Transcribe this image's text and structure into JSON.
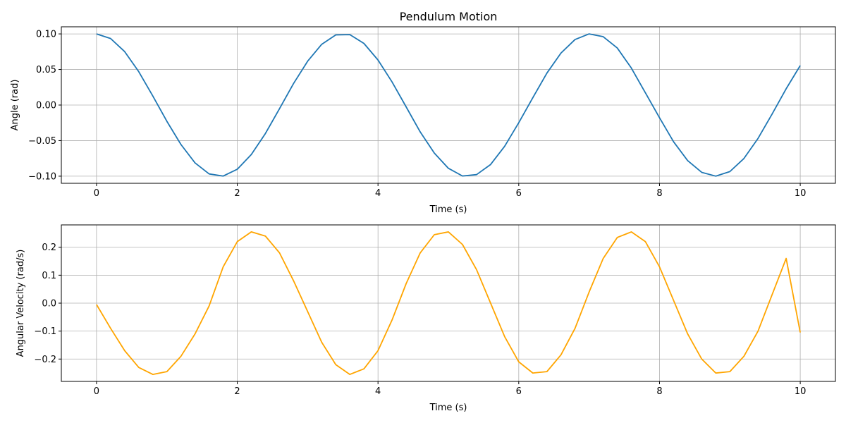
{
  "chart_data": [
    {
      "type": "line",
      "title": "Pendulum Motion",
      "xlabel": "Time (s)",
      "ylabel": "Angle (rad)",
      "xlim": [
        -0.5,
        10.5
      ],
      "ylim": [
        -0.11,
        0.11
      ],
      "xticks": [
        0,
        2,
        4,
        6,
        8,
        10
      ],
      "yticks": [
        -0.1,
        -0.05,
        0.0,
        0.05,
        0.1
      ],
      "ytick_labels": [
        "−0.10",
        "−0.05",
        "0.00",
        "0.05",
        "0.10"
      ],
      "xtick_labels": [
        "0",
        "2",
        "4",
        "6",
        "8",
        "10"
      ],
      "grid": true,
      "series": [
        {
          "color": "#1f77b4",
          "x": [
            0,
            0.2,
            0.4,
            0.6,
            0.8,
            1.0,
            1.2,
            1.4,
            1.6,
            1.8,
            2.0,
            2.2,
            2.4,
            2.6,
            2.8,
            3.0,
            3.2,
            3.4,
            3.6,
            3.8,
            4.0,
            4.2,
            4.4,
            4.6,
            4.8,
            5.0,
            5.2,
            5.4,
            5.6,
            5.8,
            6.0,
            6.2,
            6.4,
            6.6,
            6.8,
            7.0,
            7.2,
            7.4,
            7.6,
            7.8,
            8.0,
            8.2,
            8.4,
            8.6,
            8.8,
            9.0,
            9.2,
            9.4,
            9.6,
            9.8,
            10.0
          ],
          "y": [
            0.1,
            0.0935,
            0.0751,
            0.0469,
            0.0127,
            -0.0229,
            -0.0555,
            -0.0813,
            -0.0968,
            -0.0998,
            -0.0903,
            -0.0695,
            -0.04,
            -0.0051,
            0.0303,
            0.0616,
            0.0854,
            0.0986,
            0.099,
            0.0866,
            0.0633,
            0.0324,
            -0.0026,
            -0.0378,
            -0.0675,
            -0.0889,
            -0.0997,
            -0.0978,
            -0.0836,
            -0.0579,
            -0.0248,
            0.0103,
            0.0449,
            0.0731,
            0.0921,
            0.1,
            0.0961,
            0.0802,
            0.052,
            0.0171,
            -0.0178,
            -0.0516,
            -0.0781,
            -0.0946,
            -0.0999,
            -0.0935,
            -0.0751,
            -0.0469,
            -0.0127,
            0.0229,
            0.0555
          ]
        }
      ]
    },
    {
      "type": "line",
      "title": "",
      "xlabel": "Time (s)",
      "ylabel": "Angular Velocity (rad/s)",
      "xlim": [
        -0.5,
        10.5
      ],
      "ylim": [
        -0.28,
        0.28
      ],
      "xticks": [
        0,
        2,
        4,
        6,
        8,
        10
      ],
      "yticks": [
        -0.2,
        -0.1,
        0.0,
        0.1,
        0.2
      ],
      "ytick_labels": [
        "−0.2",
        "−0.1",
        "0.0",
        "0.1",
        "0.2"
      ],
      "xtick_labels": [
        "0",
        "2",
        "4",
        "6",
        "8",
        "10"
      ],
      "grid": true,
      "series": [
        {
          "color": "#ffa500",
          "x": [
            0,
            0.2,
            0.4,
            0.6,
            0.8,
            1.0,
            1.2,
            1.4,
            1.6,
            1.8,
            2.0,
            2.2,
            2.4,
            2.6,
            2.8,
            3.0,
            3.2,
            3.4,
            3.6,
            3.8,
            4.0,
            4.2,
            4.4,
            4.6,
            4.8,
            5.0,
            5.2,
            5.4,
            5.6,
            5.8,
            6.0,
            6.2,
            6.4,
            6.6,
            6.8,
            7.0,
            7.2,
            7.4,
            7.6,
            7.8,
            8.0,
            8.2,
            8.4,
            8.6,
            8.8,
            9.0,
            9.2,
            9.4,
            9.6,
            9.8,
            10.0
          ],
          "y": [
            -0.005,
            -0.09,
            -0.17,
            -0.23,
            -0.255,
            -0.245,
            -0.19,
            -0.11,
            -0.01,
            0.13,
            0.22,
            0.255,
            0.24,
            0.18,
            0.08,
            -0.03,
            -0.14,
            -0.22,
            -0.255,
            -0.235,
            -0.17,
            -0.06,
            0.07,
            0.18,
            0.245,
            0.255,
            0.21,
            0.12,
            0.0,
            -0.12,
            -0.21,
            -0.25,
            -0.245,
            -0.185,
            -0.09,
            0.04,
            0.16,
            0.235,
            0.255,
            0.22,
            0.13,
            0.01,
            -0.11,
            -0.2,
            -0.25,
            -0.245,
            -0.19,
            -0.1,
            0.03,
            0.16,
            -0.105
          ]
        }
      ]
    }
  ]
}
